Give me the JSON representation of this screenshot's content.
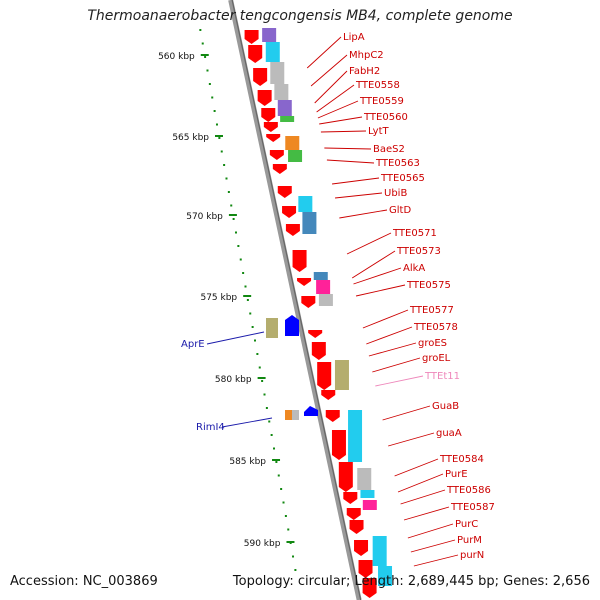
{
  "title": "Thermoanaerobacter tengcongensis MB4, complete genome",
  "accession_label": "Accession: NC_003869",
  "summary_label": "Topology: circular; Length: 2,689,445 bp; Genes: 2,656",
  "scale": {
    "unit": "kbp",
    "ticks": [
      "560 kbp",
      "565 kbp",
      "570 kbp",
      "575 kbp",
      "580 kbp",
      "585 kbp",
      "590 kbp"
    ]
  },
  "genes_right": [
    {
      "name": "LipA",
      "color": "#cc0000"
    },
    {
      "name": "MhpC2",
      "color": "#cc0000"
    },
    {
      "name": "FabH2",
      "color": "#cc0000"
    },
    {
      "name": "TTE0558",
      "color": "#cc0000"
    },
    {
      "name": "TTE0559",
      "color": "#cc0000"
    },
    {
      "name": "TTE0560",
      "color": "#cc0000"
    },
    {
      "name": "LytT",
      "color": "#cc0000"
    },
    {
      "name": "BaeS2",
      "color": "#cc0000"
    },
    {
      "name": "TTE0563",
      "color": "#cc0000"
    },
    {
      "name": "TTE0565",
      "color": "#cc0000"
    },
    {
      "name": "UbiB",
      "color": "#cc0000"
    },
    {
      "name": "GltD",
      "color": "#cc0000"
    },
    {
      "name": "TTE0571",
      "color": "#cc0000"
    },
    {
      "name": "TTE0573",
      "color": "#cc0000"
    },
    {
      "name": "AlkA",
      "color": "#cc0000"
    },
    {
      "name": "TTE0575",
      "color": "#cc0000"
    },
    {
      "name": "TTE0577",
      "color": "#cc0000"
    },
    {
      "name": "TTE0578",
      "color": "#cc0000"
    },
    {
      "name": "groES",
      "color": "#cc0000"
    },
    {
      "name": "groEL",
      "color": "#cc0000"
    },
    {
      "name": "TTEt11",
      "color": "#ee88bb"
    },
    {
      "name": "GuaB",
      "color": "#cc0000"
    },
    {
      "name": "guaA",
      "color": "#cc0000"
    },
    {
      "name": "TTE0584",
      "color": "#cc0000"
    },
    {
      "name": "PurE",
      "color": "#cc0000"
    },
    {
      "name": "TTE0586",
      "color": "#cc0000"
    },
    {
      "name": "TTE0587",
      "color": "#cc0000"
    },
    {
      "name": "PurC",
      "color": "#cc0000"
    },
    {
      "name": "PurM",
      "color": "#cc0000"
    },
    {
      "name": "purN",
      "color": "#cc0000"
    }
  ],
  "genes_left": [
    {
      "name": "AprE",
      "color": "#1a1aaa"
    },
    {
      "name": "RimI4",
      "color": "#1a1aaa"
    }
  ],
  "colors": {
    "backbone": "#888888",
    "forward_gene": "#ff0000",
    "reverse_gene": "#0000ff",
    "scale_dots": "#118811",
    "cog_cyan": "#22ccee",
    "cog_gray": "#bbbbbb",
    "cog_olive": "#b4ad6e",
    "cog_purple": "#8866cc",
    "cog_magenta": "#ff2299",
    "cog_green": "#44bb44",
    "cog_orange": "#ee8822",
    "cog_steel": "#4488bb"
  }
}
